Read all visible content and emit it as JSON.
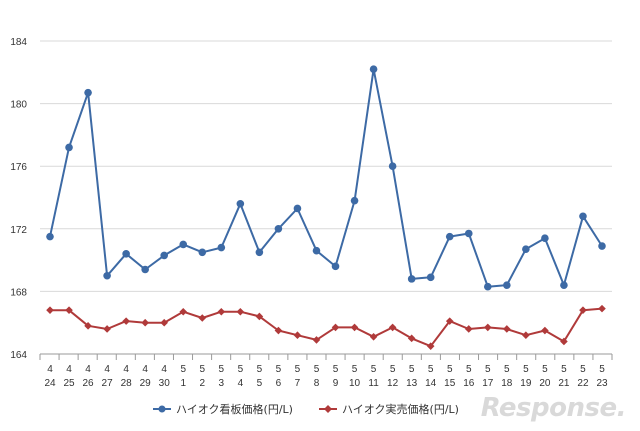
{
  "chart_data": {
    "type": "line",
    "x": [
      [
        "4",
        "24"
      ],
      [
        "4",
        "25"
      ],
      [
        "4",
        "26"
      ],
      [
        "4",
        "27"
      ],
      [
        "4",
        "28"
      ],
      [
        "4",
        "29"
      ],
      [
        "4",
        "30"
      ],
      [
        "5",
        "1"
      ],
      [
        "5",
        "2"
      ],
      [
        "5",
        "3"
      ],
      [
        "5",
        "4"
      ],
      [
        "5",
        "5"
      ],
      [
        "5",
        "6"
      ],
      [
        "5",
        "7"
      ],
      [
        "5",
        "8"
      ],
      [
        "5",
        "9"
      ],
      [
        "5",
        "10"
      ],
      [
        "5",
        "11"
      ],
      [
        "5",
        "12"
      ],
      [
        "5",
        "13"
      ],
      [
        "5",
        "14"
      ],
      [
        "5",
        "15"
      ],
      [
        "5",
        "16"
      ],
      [
        "5",
        "17"
      ],
      [
        "5",
        "18"
      ],
      [
        "5",
        "19"
      ],
      [
        "5",
        "20"
      ],
      [
        "5",
        "21"
      ],
      [
        "5",
        "22"
      ],
      [
        "5",
        "23"
      ]
    ],
    "ylim": [
      164,
      184
    ],
    "yticks": [
      "164",
      "168",
      "172",
      "176",
      "180",
      "184"
    ],
    "grid": true,
    "legend_position": "bottom",
    "series": [
      {
        "name": "ハイオク看板価格(円/L)",
        "color": "#3d6aa5",
        "marker": "circle",
        "values": [
          171.5,
          177.2,
          180.7,
          169.0,
          170.4,
          169.4,
          170.3,
          171.0,
          170.5,
          170.8,
          173.6,
          170.5,
          172.0,
          173.3,
          170.6,
          169.6,
          173.8,
          182.2,
          176.0,
          168.8,
          168.9,
          171.5,
          171.7,
          168.3,
          168.4,
          170.7,
          171.4,
          168.4,
          172.8,
          170.9
        ]
      },
      {
        "name": "ハイオク実売価格(円/L)",
        "color": "#b03a3a",
        "marker": "diamond",
        "values": [
          166.8,
          166.8,
          165.8,
          165.6,
          166.1,
          166.0,
          166.0,
          166.7,
          166.3,
          166.7,
          166.7,
          166.4,
          165.5,
          165.2,
          164.9,
          165.7,
          165.7,
          165.1,
          165.7,
          165.0,
          164.5,
          166.1,
          165.6,
          165.7,
          165.6,
          165.2,
          165.5,
          164.8,
          166.8,
          166.9
        ]
      }
    ]
  },
  "watermark": "Response."
}
